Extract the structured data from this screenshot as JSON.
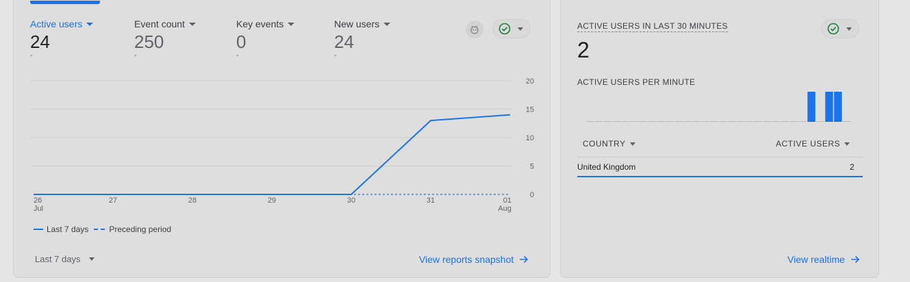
{
  "metrics": [
    {
      "label": "Active users",
      "value": "24",
      "delta": "-"
    },
    {
      "label": "Event count",
      "value": "250",
      "delta": "-"
    },
    {
      "label": "Key events",
      "value": "0",
      "delta": "-"
    },
    {
      "label": "New users",
      "value": "24",
      "delta": "-"
    }
  ],
  "icons": {
    "insights": "insights-icon",
    "status": "check-circle-icon"
  },
  "colors": {
    "accent": "#1a73e8",
    "status_green": "#188038"
  },
  "chart_data": {
    "type": "line",
    "x_labels": [
      {
        "day": "26",
        "month": "Jul"
      },
      {
        "day": "27",
        "month": ""
      },
      {
        "day": "28",
        "month": ""
      },
      {
        "day": "29",
        "month": ""
      },
      {
        "day": "30",
        "month": ""
      },
      {
        "day": "31",
        "month": ""
      },
      {
        "day": "01",
        "month": "Aug"
      }
    ],
    "y_ticks": [
      "0",
      "5",
      "10",
      "15",
      "20"
    ],
    "ylim": [
      0,
      20
    ],
    "series": [
      {
        "name": "Last 7 days",
        "style": "solid",
        "values": [
          0,
          0,
          0,
          0,
          0,
          13,
          14
        ]
      },
      {
        "name": "Preceding period",
        "style": "dashed",
        "values": [
          0,
          0,
          0,
          0,
          0,
          0,
          0
        ]
      }
    ],
    "grid": true
  },
  "footer": {
    "date_range": "Last 7 days",
    "link": "View reports snapshot"
  },
  "realtime": {
    "title": "ACTIVE USERS IN LAST 30 MINUTES",
    "value": "2",
    "per_minute_label": "ACTIVE USERS PER MINUTE",
    "per_minute_chart": {
      "type": "bar",
      "values": [
        0,
        0,
        0,
        0,
        0,
        0,
        0,
        0,
        0,
        0,
        0,
        0,
        0,
        0,
        0,
        0,
        0,
        0,
        0,
        0,
        0,
        0,
        0,
        0,
        0,
        1,
        0,
        1,
        1,
        0
      ],
      "ylim": [
        0,
        1
      ]
    },
    "table": {
      "headers": [
        "COUNTRY",
        "ACTIVE USERS"
      ],
      "rows": [
        {
          "country": "United Kingdom",
          "users": "2"
        }
      ]
    },
    "link": "View realtime"
  }
}
